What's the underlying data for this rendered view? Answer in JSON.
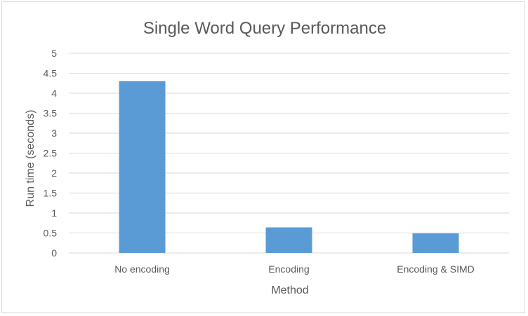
{
  "chart_data": {
    "type": "bar",
    "title": "Single Word Query Performance",
    "xlabel": "Method",
    "ylabel": "Run time (seconds)",
    "categories": [
      "No encoding",
      "Encoding",
      "Encoding & SIMD"
    ],
    "values": [
      4.3,
      0.64,
      0.49
    ],
    "ylim": [
      0,
      5
    ],
    "yticks": [
      "0",
      "0.5",
      "1",
      "1.5",
      "2",
      "2.5",
      "3",
      "3.5",
      "4",
      "4.5",
      "5"
    ],
    "grid": true,
    "legend": "none",
    "bar_color": "#5b9bd5"
  }
}
